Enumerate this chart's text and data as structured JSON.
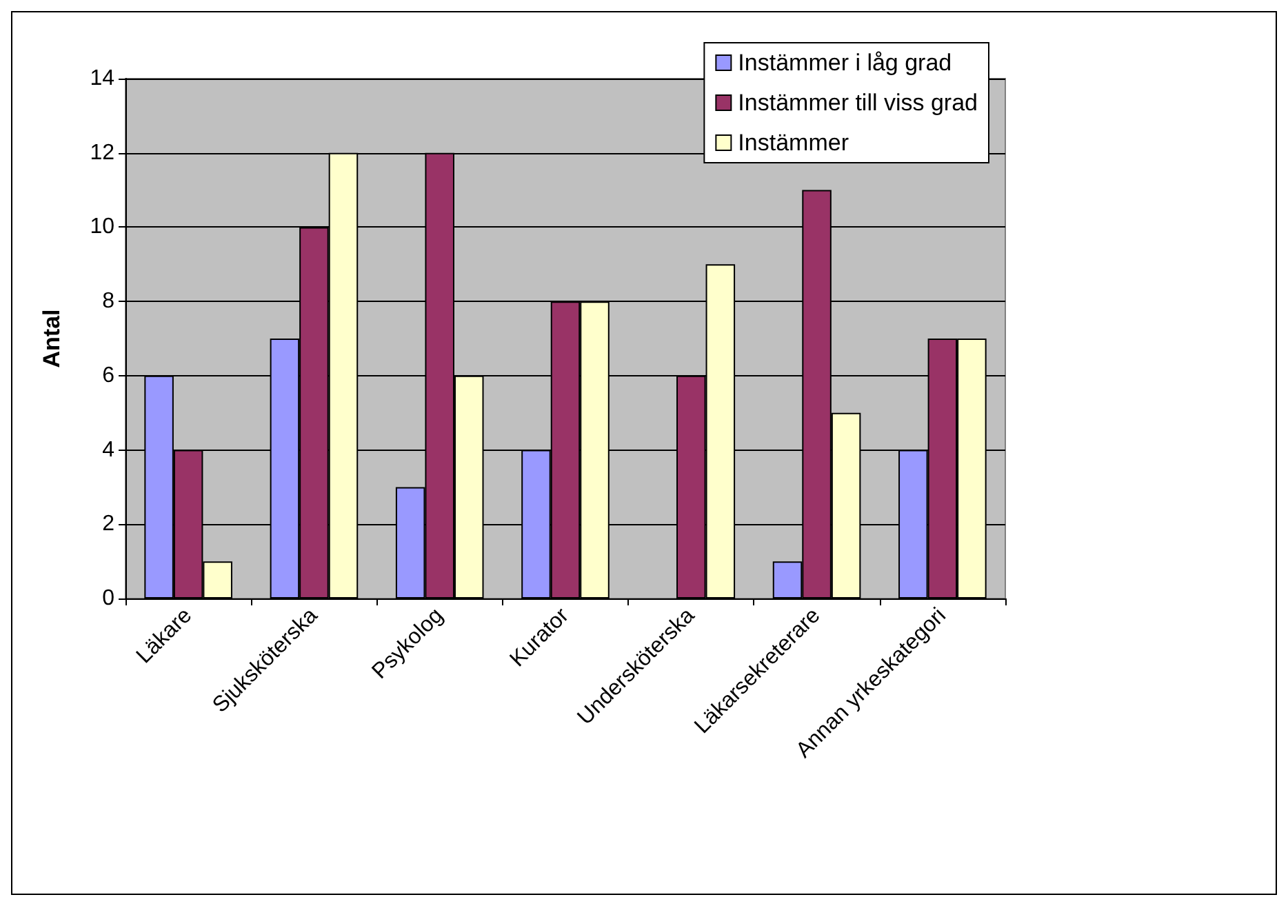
{
  "chart_data": {
    "type": "bar",
    "ylabel": "Antal",
    "categories": [
      "Läkare",
      "Sjuksköterska",
      "Psykolog",
      "Kurator",
      "Undersköterska",
      "Läkarsekreterare",
      "Annan yrkeskategori"
    ],
    "series": [
      {
        "name": "Instämmer i låg grad",
        "color": "#9999ff",
        "values": [
          6,
          7,
          3,
          4,
          null,
          1,
          4
        ]
      },
      {
        "name": "Instämmer till viss grad",
        "color": "#993366",
        "values": [
          4,
          10,
          12,
          8,
          6,
          11,
          7
        ]
      },
      {
        "name": "Instämmer",
        "color": "#ffffcc",
        "values": [
          1,
          12,
          6,
          8,
          9,
          5,
          7
        ]
      }
    ],
    "ylim": [
      0,
      14
    ],
    "yticks": [
      0,
      2,
      4,
      6,
      8,
      10,
      12,
      14
    ],
    "grid": "y",
    "legend": "top right"
  }
}
